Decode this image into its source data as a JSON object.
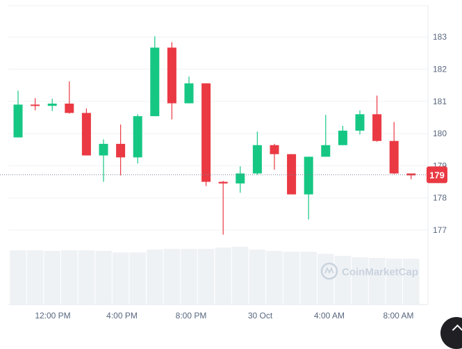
{
  "chart_data": {
    "type": "candlestick",
    "y_ticks": [
      "177",
      "178",
      "179",
      "180",
      "181",
      "182",
      "183"
    ],
    "x_ticks": [
      "12:00 PM",
      "4:00 PM",
      "8:00 PM",
      "30 Oct",
      "4:00 AM",
      "8:00 AM"
    ],
    "ylim": [
      176.1,
      183.9
    ],
    "grid": true,
    "last_price_label": "179",
    "last_price": 178.72,
    "up_color": "#16c784",
    "down_color": "#ea3943",
    "volume_color": "#eff2f5",
    "watermark": "CoinMarketCap",
    "candles": [
      {
        "open": 179.88,
        "high": 181.33,
        "low": 179.88,
        "close": 180.9
      },
      {
        "open": 180.9,
        "high": 181.1,
        "low": 180.72,
        "close": 180.86
      },
      {
        "open": 180.86,
        "high": 181.08,
        "low": 180.7,
        "close": 180.93
      },
      {
        "open": 180.93,
        "high": 181.62,
        "low": 180.62,
        "close": 180.64
      },
      {
        "open": 180.64,
        "high": 180.78,
        "low": 179.32,
        "close": 179.32
      },
      {
        "open": 179.32,
        "high": 179.82,
        "low": 178.5,
        "close": 179.68
      },
      {
        "open": 179.68,
        "high": 180.28,
        "low": 178.7,
        "close": 179.26
      },
      {
        "open": 179.26,
        "high": 180.6,
        "low": 179.07,
        "close": 180.54
      },
      {
        "open": 180.54,
        "high": 183.02,
        "low": 180.54,
        "close": 182.67
      },
      {
        "open": 182.67,
        "high": 182.84,
        "low": 180.44,
        "close": 180.94
      },
      {
        "open": 180.94,
        "high": 181.77,
        "low": 180.94,
        "close": 181.56
      },
      {
        "open": 181.56,
        "high": 181.56,
        "low": 178.37,
        "close": 178.5
      },
      {
        "open": 178.5,
        "high": 178.53,
        "low": 176.86,
        "close": 178.45
      },
      {
        "open": 178.45,
        "high": 178.98,
        "low": 178.16,
        "close": 178.76
      },
      {
        "open": 178.76,
        "high": 180.06,
        "low": 178.72,
        "close": 179.64
      },
      {
        "open": 179.64,
        "high": 179.68,
        "low": 178.88,
        "close": 179.36
      },
      {
        "open": 179.36,
        "high": 179.36,
        "low": 178.11,
        "close": 178.11
      },
      {
        "open": 178.11,
        "high": 179.28,
        "low": 177.33,
        "close": 179.28
      },
      {
        "open": 179.28,
        "high": 180.58,
        "low": 179.28,
        "close": 179.64
      },
      {
        "open": 179.64,
        "high": 180.24,
        "low": 179.64,
        "close": 180.09
      },
      {
        "open": 180.09,
        "high": 180.72,
        "low": 179.97,
        "close": 180.6
      },
      {
        "open": 180.6,
        "high": 181.18,
        "low": 179.75,
        "close": 179.77
      },
      {
        "open": 179.77,
        "high": 180.36,
        "low": 178.74,
        "close": 178.76
      },
      {
        "open": 178.76,
        "high": 178.76,
        "low": 178.58,
        "close": 178.7
      }
    ],
    "volumes": [
      0.78,
      0.78,
      0.77,
      0.78,
      0.78,
      0.77,
      0.75,
      0.75,
      0.79,
      0.8,
      0.8,
      0.8,
      0.82,
      0.83,
      0.79,
      0.77,
      0.76,
      0.76,
      0.73,
      0.7,
      0.68,
      0.67,
      0.66,
      0.66
    ]
  }
}
